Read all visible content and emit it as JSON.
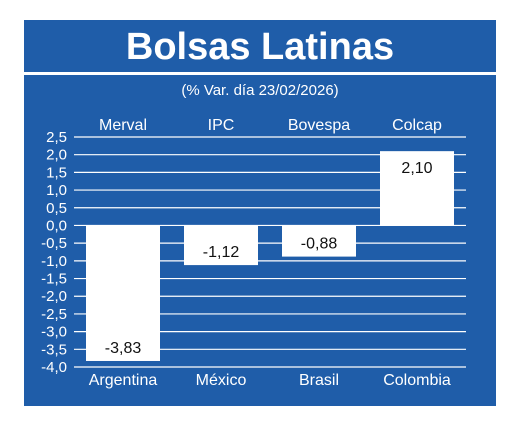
{
  "title": "Bolsas Latinas",
  "subtitle": "(% Var. día 23/02/2026)",
  "colors": {
    "background": "#1f5da9",
    "bar": "#ffffff",
    "text": "#ffffff",
    "label_dark": "#111111"
  },
  "chart_data": {
    "type": "bar",
    "title": "Bolsas Latinas",
    "subtitle": "(% Var. día 23/02/2026)",
    "index_labels": [
      "Merval",
      "IPC",
      "Bovespa",
      "Colcap"
    ],
    "categories": [
      "Argentina",
      "México",
      "Brasil",
      "Colombia"
    ],
    "values": [
      -3.83,
      -1.12,
      -0.88,
      2.1
    ],
    "value_labels": [
      "-3,83",
      "-1,12",
      "-0,88",
      "2,10"
    ],
    "yticks": [
      "2,5",
      "2,0",
      "1,5",
      "1,0",
      "0,5",
      "0,0",
      "-0,5",
      "-1,0",
      "-1,5",
      "-2,0",
      "-2,5",
      "-3,0",
      "-3,5",
      "-4,0"
    ],
    "ylim": [
      -4.0,
      2.5
    ],
    "ystep": 0.5,
    "grid": true,
    "legend": "none"
  }
}
